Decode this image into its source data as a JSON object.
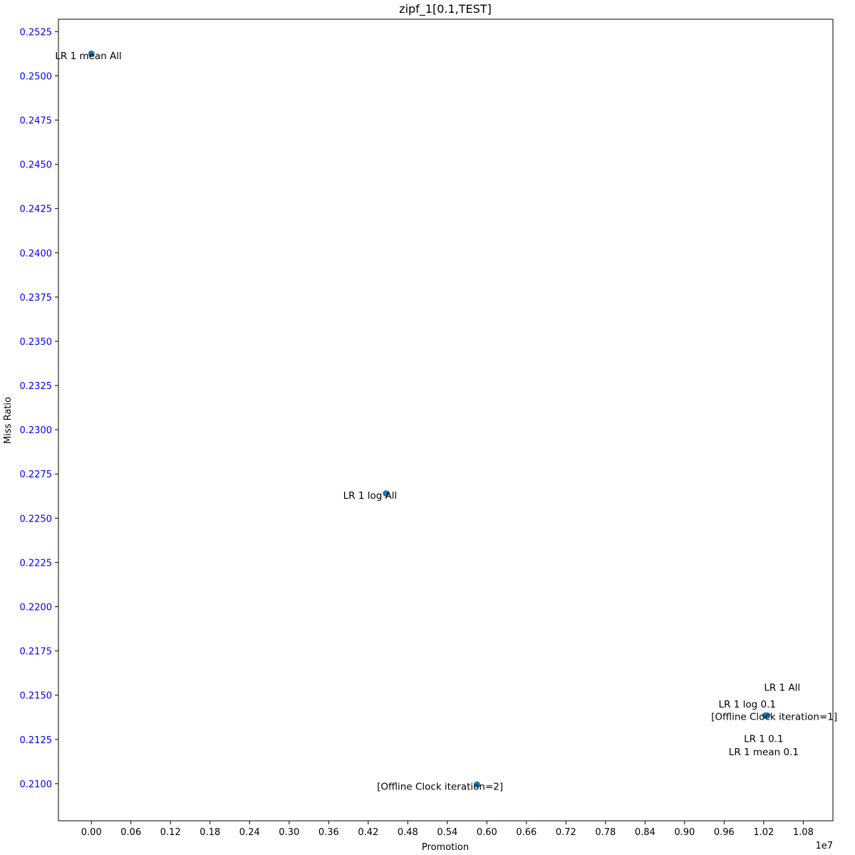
{
  "chart_data": {
    "type": "scatter",
    "title": "zipf_1[0.1,TEST]",
    "xlabel": "Promotion",
    "ylabel": "Miss Ratio",
    "x_offset_text": "1e7",
    "xlim": [
      -0.05,
      1.125
    ],
    "ylim": [
      0.2079,
      0.2532
    ],
    "x_ticks": [
      0.0,
      0.06,
      0.12,
      0.18,
      0.24,
      0.3,
      0.36,
      0.42,
      0.48,
      0.54,
      0.6,
      0.66,
      0.72,
      0.78,
      0.84,
      0.9,
      0.96,
      1.02,
      1.08
    ],
    "x_tick_labels": [
      "0.00",
      "0.06",
      "0.12",
      "0.18",
      "0.24",
      "0.30",
      "0.36",
      "0.42",
      "0.48",
      "0.54",
      "0.60",
      "0.66",
      "0.72",
      "0.78",
      "0.84",
      "0.90",
      "0.96",
      "1.02",
      "1.08"
    ],
    "y_ticks": [
      0.21,
      0.2125,
      0.215,
      0.2175,
      0.22,
      0.2225,
      0.225,
      0.2275,
      0.23,
      0.2325,
      0.235,
      0.2375,
      0.24,
      0.2425,
      0.245,
      0.2475,
      0.25,
      0.2525
    ],
    "y_tick_labels": [
      "0.2100",
      "0.2125",
      "0.2150",
      "0.2175",
      "0.2200",
      "0.2225",
      "0.2250",
      "0.2275",
      "0.2300",
      "0.2325",
      "0.2350",
      "0.2375",
      "0.2400",
      "0.2425",
      "0.2450",
      "0.2475",
      "0.2500",
      "0.2525"
    ],
    "y_tick_color": "#0000ff",
    "marker_color": "#1f77b4",
    "grid": false,
    "points": [
      {
        "x": 0.0,
        "y": 0.25125
      },
      {
        "x": 0.447,
        "y": 0.2264
      },
      {
        "x": 0.585,
        "y": 0.20995
      },
      {
        "x": 1.0225,
        "y": 0.21385
      },
      {
        "x": 1.0255,
        "y": 0.21385
      }
    ],
    "annotations": [
      {
        "text": "LR 1 mean All",
        "x": -0.0045,
        "y": 0.25095
      },
      {
        "text": "LR 1 log All",
        "x": 0.4229,
        "y": 0.2261
      },
      {
        "text": "[Offline Clock iteration=2]",
        "x": 0.529,
        "y": 0.20965
      },
      {
        "text": "LR 1 All",
        "x": 1.048,
        "y": 0.21525
      },
      {
        "text": "LR 1 log 0.1",
        "x": 0.995,
        "y": 0.2143
      },
      {
        "text": "[Offline Clock iteration=1]",
        "x": 1.036,
        "y": 0.2136
      },
      {
        "text": "LR 1 0.1",
        "x": 1.02,
        "y": 0.21235
      },
      {
        "text": "LR 1 mean 0.1",
        "x": 1.02,
        "y": 0.2116
      }
    ]
  }
}
